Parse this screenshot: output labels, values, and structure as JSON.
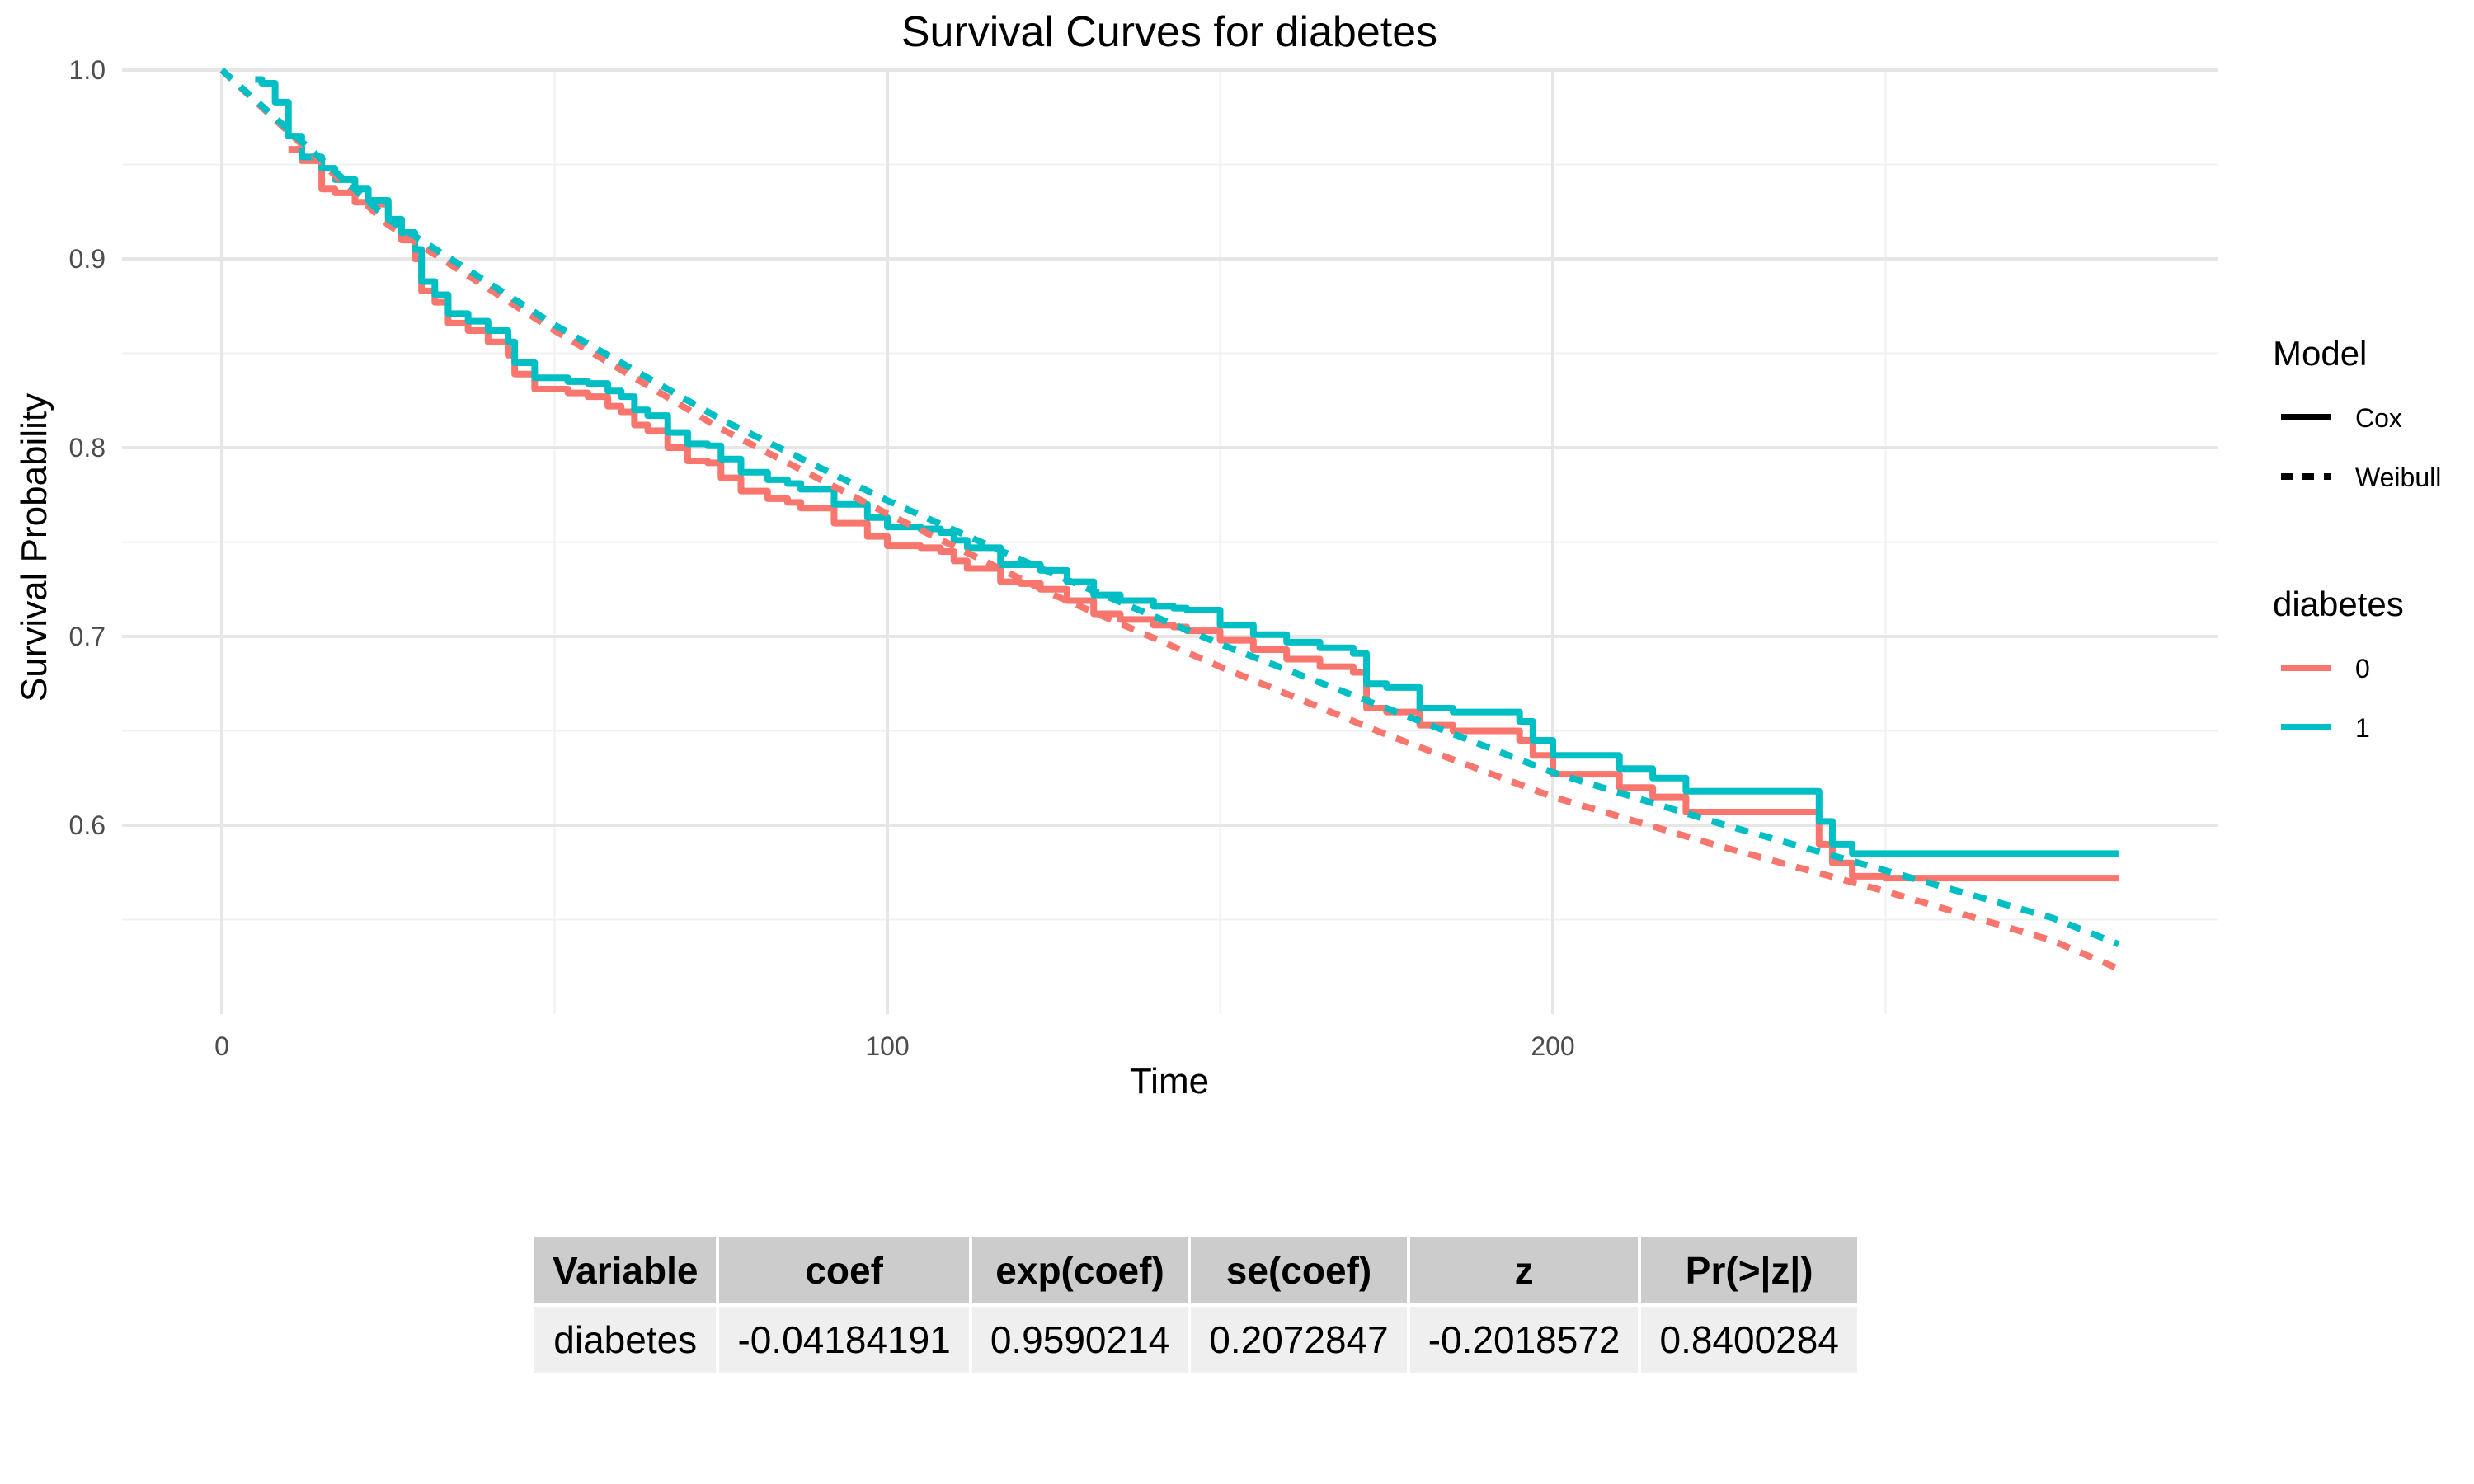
{
  "chart_data": {
    "type": "line",
    "title": "Survival Curves for diabetes",
    "xlabel": "Time",
    "ylabel": "Survival Probability",
    "xlim": [
      -15,
      300
    ],
    "ylim": [
      0.5,
      1.0
    ],
    "x_ticks": [
      0,
      100,
      200
    ],
    "y_ticks": [
      0.6,
      0.7,
      0.8,
      0.9,
      1.0
    ],
    "y_tick_labels": [
      "0.6",
      "0.7",
      "0.8",
      "0.9",
      "1.0"
    ],
    "grid": true,
    "legend_placement": "right",
    "legends": [
      {
        "title": "Model",
        "entries": [
          {
            "label": "Cox",
            "dash": "solid"
          },
          {
            "label": "Weibull",
            "dash": "dashed"
          }
        ]
      },
      {
        "title": "diabetes",
        "entries": [
          {
            "label": "0",
            "color": "#F8766D"
          },
          {
            "label": "1",
            "color": "#00BFC4"
          }
        ]
      }
    ],
    "series": [
      {
        "name": "0",
        "model": "Cox",
        "color": "#F8766D",
        "dash": "solid",
        "x": [
          10,
          12,
          15,
          17,
          20,
          22,
          25,
          27,
          29,
          30,
          32,
          34,
          37,
          40,
          43,
          44,
          47,
          52,
          55,
          58,
          60,
          62,
          64,
          67,
          70,
          73,
          75,
          78,
          82,
          85,
          87,
          92,
          97,
          100,
          105,
          108,
          110,
          112,
          117,
          120,
          123,
          127,
          131,
          135,
          140,
          143,
          145,
          150,
          155,
          160,
          165,
          170,
          172,
          175,
          180,
          185,
          190,
          195,
          197,
          200,
          205,
          210,
          215,
          220,
          225,
          235,
          240,
          242,
          245,
          250,
          260,
          270,
          285
        ],
        "y": [
          0.958,
          0.952,
          0.937,
          0.935,
          0.93,
          0.929,
          0.918,
          0.91,
          0.9,
          0.883,
          0.877,
          0.866,
          0.862,
          0.856,
          0.849,
          0.839,
          0.831,
          0.829,
          0.827,
          0.822,
          0.819,
          0.812,
          0.809,
          0.8,
          0.793,
          0.792,
          0.784,
          0.777,
          0.773,
          0.771,
          0.768,
          0.76,
          0.753,
          0.748,
          0.747,
          0.745,
          0.74,
          0.736,
          0.729,
          0.728,
          0.725,
          0.719,
          0.712,
          0.709,
          0.706,
          0.705,
          0.703,
          0.698,
          0.693,
          0.688,
          0.684,
          0.681,
          0.662,
          0.66,
          0.653,
          0.65,
          0.65,
          0.645,
          0.637,
          0.627,
          0.627,
          0.62,
          0.615,
          0.607,
          0.607,
          0.607,
          0.59,
          0.58,
          0.573,
          0.572,
          0.572,
          0.572,
          0.572
        ]
      },
      {
        "name": "1",
        "model": "Cox",
        "color": "#00BFC4",
        "dash": "solid",
        "x": [
          5,
          6,
          8,
          10,
          12,
          15,
          17,
          20,
          22,
          25,
          27,
          29,
          30,
          32,
          34,
          37,
          40,
          43,
          44,
          47,
          52,
          55,
          58,
          60,
          62,
          64,
          67,
          70,
          73,
          75,
          78,
          82,
          85,
          87,
          92,
          97,
          100,
          105,
          108,
          110,
          112,
          117,
          120,
          123,
          127,
          131,
          135,
          140,
          143,
          145,
          150,
          155,
          160,
          165,
          170,
          172,
          175,
          180,
          185,
          190,
          195,
          197,
          200,
          205,
          210,
          215,
          220,
          225,
          235,
          240,
          242,
          245,
          250,
          260,
          270,
          285
        ],
        "y": [
          0.995,
          0.993,
          0.983,
          0.965,
          0.954,
          0.948,
          0.942,
          0.937,
          0.931,
          0.921,
          0.914,
          0.905,
          0.888,
          0.881,
          0.871,
          0.867,
          0.862,
          0.856,
          0.845,
          0.837,
          0.835,
          0.834,
          0.83,
          0.827,
          0.82,
          0.817,
          0.808,
          0.802,
          0.801,
          0.794,
          0.787,
          0.783,
          0.781,
          0.778,
          0.77,
          0.763,
          0.758,
          0.757,
          0.755,
          0.751,
          0.747,
          0.738,
          0.738,
          0.735,
          0.729,
          0.722,
          0.719,
          0.716,
          0.715,
          0.714,
          0.706,
          0.701,
          0.697,
          0.694,
          0.691,
          0.675,
          0.673,
          0.662,
          0.66,
          0.66,
          0.655,
          0.645,
          0.637,
          0.637,
          0.63,
          0.625,
          0.618,
          0.618,
          0.618,
          0.602,
          0.59,
          0.585,
          0.585,
          0.585,
          0.585,
          0.585
        ]
      },
      {
        "name": "0",
        "model": "Weibull",
        "color": "#F8766D",
        "dash": "dashed",
        "x": [
          0,
          25,
          50,
          75,
          100,
          125,
          150,
          175,
          200,
          225,
          250,
          275,
          285
        ],
        "y": [
          1.0,
          0.918,
          0.862,
          0.81,
          0.765,
          0.722,
          0.684,
          0.648,
          0.615,
          0.589,
          0.565,
          0.539,
          0.524
        ]
      },
      {
        "name": "1",
        "model": "Weibull",
        "color": "#00BFC4",
        "dash": "dashed",
        "x": [
          0,
          25,
          50,
          75,
          100,
          125,
          150,
          175,
          200,
          225,
          250,
          275,
          285
        ],
        "y": [
          1.0,
          0.921,
          0.865,
          0.815,
          0.772,
          0.733,
          0.696,
          0.662,
          0.628,
          0.601,
          0.576,
          0.551,
          0.537
        ]
      }
    ]
  },
  "table": {
    "headers": [
      "Variable",
      "coef",
      "exp(coef)",
      "se(coef)",
      "z",
      "Pr(>|z|)"
    ],
    "rows": [
      [
        "diabetes",
        "-0.04184191",
        "0.9590214",
        "0.2072847",
        "-0.2018572",
        "0.8400284"
      ]
    ]
  }
}
